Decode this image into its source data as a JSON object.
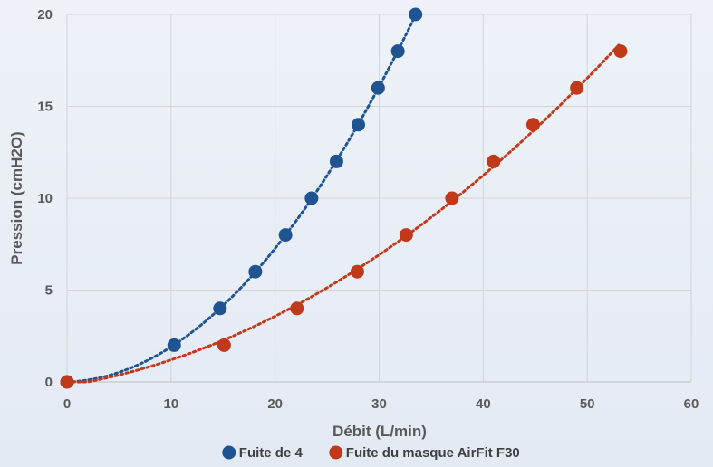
{
  "chart_data": {
    "type": "scatter",
    "title": "",
    "xlabel": "Débit (L/min)",
    "ylabel": "Pression (cmH2O)",
    "xlim": [
      0,
      60
    ],
    "ylim": [
      0,
      20
    ],
    "xticks": [
      0,
      10,
      20,
      30,
      40,
      50,
      60
    ],
    "yticks": [
      0,
      5,
      10,
      15,
      20
    ],
    "grid": true,
    "legend_position": "bottom",
    "trendline": "polynomial, dotted",
    "series": [
      {
        "name": "Fuite de 4",
        "color": "#1f5493",
        "points": [
          {
            "x": 0,
            "y": 0
          },
          {
            "x": 10.3,
            "y": 2
          },
          {
            "x": 14.7,
            "y": 4
          },
          {
            "x": 18.1,
            "y": 6
          },
          {
            "x": 21.0,
            "y": 8
          },
          {
            "x": 23.5,
            "y": 10
          },
          {
            "x": 25.9,
            "y": 12
          },
          {
            "x": 28.0,
            "y": 14
          },
          {
            "x": 29.9,
            "y": 16
          },
          {
            "x": 31.8,
            "y": 18
          },
          {
            "x": 33.5,
            "y": 20
          }
        ]
      },
      {
        "name": "Fuite du masque AirFit F30",
        "color": "#c0391b",
        "points": [
          {
            "x": 0,
            "y": 0
          },
          {
            "x": 15.1,
            "y": 2
          },
          {
            "x": 22.1,
            "y": 4
          },
          {
            "x": 27.9,
            "y": 6
          },
          {
            "x": 32.6,
            "y": 8
          },
          {
            "x": 37.0,
            "y": 10
          },
          {
            "x": 41.0,
            "y": 12
          },
          {
            "x": 44.8,
            "y": 14
          },
          {
            "x": 49.0,
            "y": 16
          },
          {
            "x": 53.2,
            "y": 18
          }
        ]
      }
    ]
  }
}
